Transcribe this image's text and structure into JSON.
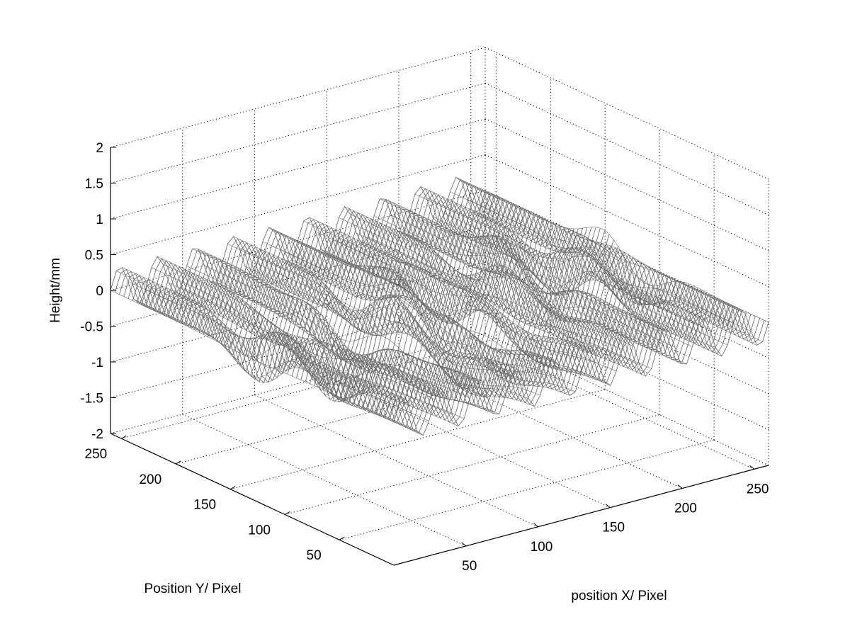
{
  "chart_data": {
    "type": "surface",
    "zlabel": "Height/mm",
    "xlabel": "position X/ Pixel",
    "ylabel": "Position Y/ Pixel",
    "xlim": [
      0,
      260
    ],
    "ylim": [
      0,
      260
    ],
    "zlim": [
      -2,
      2
    ],
    "x_ticks": [
      50,
      100,
      150,
      200,
      250
    ],
    "y_ticks": [
      50,
      100,
      150,
      200,
      250
    ],
    "z_ticks": [
      2,
      1.5,
      1,
      0.5,
      0,
      -0.5,
      -1,
      -1.5,
      -2
    ],
    "z_tick_labels": [
      "2",
      "1.5",
      "1",
      "0.5",
      "0",
      "-0.5",
      "-1",
      "-1.5",
      "-2"
    ],
    "grid": true,
    "grid_style": "dotted",
    "surface": {
      "style": "mesh",
      "edge_color": "#6e6e6e",
      "ridge_count": 10,
      "ridge_amplitude_mm": 0.3,
      "grid_resolution": 256,
      "feature_band_y": [
        80,
        180
      ],
      "feature_peak_mm": 0.6
    }
  }
}
